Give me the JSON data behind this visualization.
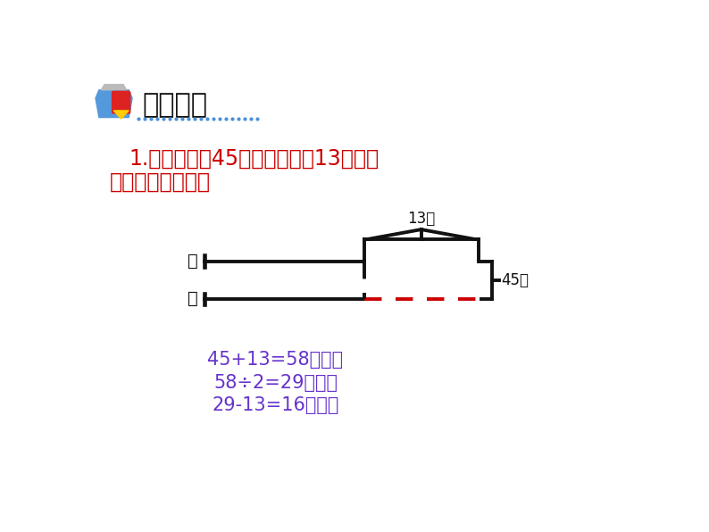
{
  "title": "激活策略",
  "bg_color": "#ffffff",
  "question_text_line1": "1.鸡和鸭一共45只，鸡比鸭多13只。鸡",
  "question_text_line2": "和鸭各有多少只？",
  "question_color": "#cc0000",
  "label_ji": "鸡",
  "label_ya": "鸭",
  "label_13": "13只",
  "label_45": "45只",
  "dashed_color": "#cc0000",
  "solid_color": "#111111",
  "formula_color": "#6633cc",
  "formula_line1": "45+13=58（只）",
  "formula_line2": "58÷2=29（只）",
  "formula_line3": "29-13=16（只）",
  "dot_line_color": "#4a90d9"
}
